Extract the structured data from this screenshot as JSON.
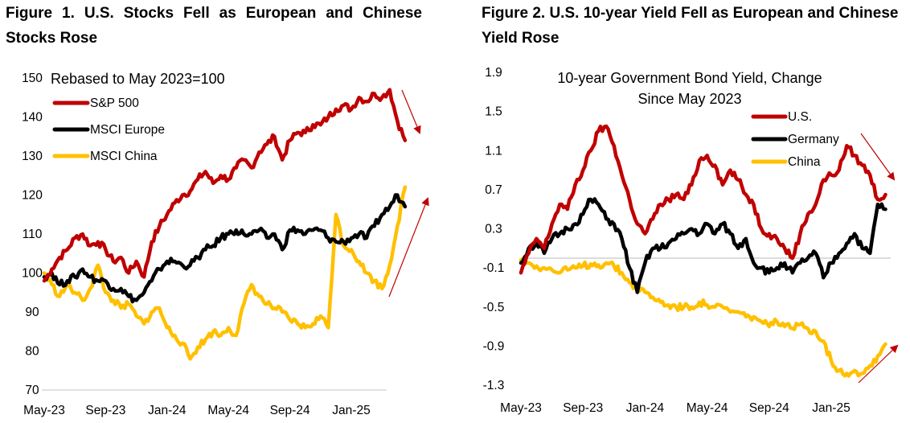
{
  "figures": [
    {
      "title": "Figure 1. U.S. Stocks Fell as European and Chinese Stocks Rose"
    },
    {
      "title": "Figure 2. U.S. 10-year Yield Fell as European and Chinese Yield Rose"
    }
  ],
  "colors": {
    "us": "#C00000",
    "europe": "#000000",
    "china": "#FFC000",
    "arrow": "#C00000",
    "zero_line": "#D0D0D0"
  },
  "chart_data": [
    {
      "type": "line",
      "title": "Figure 1. U.S. Stocks Fell as European and Chinese Stocks Rose",
      "subtitle": "Rebased to May 2023=100",
      "xlabel": "",
      "ylabel": "",
      "x_unit": "months since May-23",
      "xlim": [
        0,
        24
      ],
      "ylim": [
        70,
        150
      ],
      "yticks": [
        "150",
        "140",
        "130",
        "120",
        "110",
        "100",
        "90",
        "80",
        "70"
      ],
      "ytick_values": [
        150,
        140,
        130,
        120,
        110,
        100,
        90,
        80,
        70
      ],
      "xticks": [
        "May-23",
        "Sep-23",
        "Jan-24",
        "May-24",
        "Sep-24",
        "Jan-25"
      ],
      "xtick_values": [
        0,
        4,
        8,
        12,
        16,
        20
      ],
      "legend_position": "top-left",
      "x": [
        0,
        0.5,
        1,
        1.5,
        2,
        2.5,
        3,
        3.5,
        4,
        4.5,
        5,
        5.5,
        6,
        6.5,
        7,
        7.5,
        8,
        8.5,
        9,
        9.5,
        10,
        10.5,
        11,
        11.5,
        12,
        12.5,
        13,
        13.5,
        14,
        14.5,
        15,
        15.5,
        16,
        16.5,
        17,
        17.5,
        18,
        18.5,
        19,
        19.5,
        20,
        20.5,
        21,
        21.5,
        22,
        22.5,
        23,
        23.5
      ],
      "series": [
        {
          "name": "S&P 500",
          "key": "us",
          "values": [
            98,
            101,
            104,
            106,
            109,
            110,
            107,
            108,
            106,
            103,
            104,
            100,
            103,
            99,
            108,
            112,
            115,
            118,
            120,
            121,
            124,
            126,
            123,
            125,
            124,
            127,
            129,
            127,
            131,
            133,
            135,
            129,
            134,
            136,
            136,
            138,
            138,
            140,
            142,
            143,
            142,
            145,
            144,
            146,
            145,
            147,
            139,
            134
          ]
        },
        {
          "name": "MSCI Europe",
          "key": "europe",
          "values": [
            99,
            100,
            97,
            98,
            99,
            101,
            99,
            98,
            98,
            96,
            96,
            94,
            93,
            95,
            98,
            101,
            103,
            103,
            102,
            102,
            104,
            106,
            107,
            109,
            110,
            111,
            110,
            110,
            111,
            109,
            110,
            106,
            111,
            111,
            110,
            111,
            111,
            109,
            108,
            108,
            109,
            110,
            109,
            112,
            115,
            117,
            120,
            117
          ]
        },
        {
          "name": "MSCI China",
          "key": "china",
          "values": [
            100,
            97,
            94,
            97,
            95,
            93,
            96,
            102,
            95,
            93,
            91,
            92,
            89,
            87,
            90,
            91,
            86,
            84,
            82,
            78,
            81,
            83,
            85,
            84,
            86,
            84,
            92,
            97,
            94,
            92,
            91,
            90,
            88,
            87,
            86,
            87,
            89,
            86,
            115,
            107,
            106,
            103,
            100,
            98,
            96,
            102,
            112,
            122
          ]
        }
      ],
      "annotations": [
        "arrow-down-on-S&P-500",
        "arrow-up-on-Europe-and-China"
      ]
    },
    {
      "type": "line",
      "title": "Figure 2. U.S. 10-year Yield Fell as European and Chinese Yield Rose",
      "subtitle_lines": [
        "10-year Government Bond Yield, Change",
        "Since May 2023"
      ],
      "xlabel": "",
      "ylabel": "",
      "x_unit": "months since May-23",
      "xlim": [
        0,
        24
      ],
      "ylim": [
        -1.3,
        1.9
      ],
      "yticks": [
        "1.9",
        "1.5",
        "1.1",
        "0.7",
        "0.3",
        "-0.1",
        "-0.5",
        "-0.9",
        "-1.3"
      ],
      "ytick_values": [
        1.9,
        1.5,
        1.1,
        0.7,
        0.3,
        -0.1,
        -0.5,
        -0.9,
        -1.3
      ],
      "xticks": [
        "May-23",
        "Sep-23",
        "Jan-24",
        "May-24",
        "Sep-24",
        "Jan-25"
      ],
      "xtick_values": [
        0,
        4,
        8,
        12,
        16,
        20
      ],
      "legend_position": "top-right",
      "x": [
        0,
        0.5,
        1,
        1.5,
        2,
        2.5,
        3,
        3.5,
        4,
        4.5,
        5,
        5.5,
        6,
        6.5,
        7,
        7.5,
        8,
        8.5,
        9,
        9.5,
        10,
        10.5,
        11,
        11.5,
        12,
        12.5,
        13,
        13.5,
        14,
        14.5,
        15,
        15.5,
        16,
        16.5,
        17,
        17.5,
        18,
        18.5,
        19,
        19.5,
        20,
        20.5,
        21,
        21.5,
        22,
        22.5,
        23,
        23.5
      ],
      "series": [
        {
          "name": "U.S.",
          "key": "us",
          "values": [
            -0.15,
            0.05,
            0.2,
            0.1,
            0.35,
            0.55,
            0.5,
            0.75,
            0.9,
            1.1,
            1.3,
            1.35,
            1.15,
            0.85,
            0.6,
            0.35,
            0.25,
            0.4,
            0.55,
            0.6,
            0.65,
            0.6,
            0.75,
            1.0,
            1.05,
            0.95,
            0.75,
            0.9,
            0.8,
            0.65,
            0.55,
            0.3,
            0.25,
            0.2,
            0.1,
            0.0,
            0.25,
            0.45,
            0.55,
            0.8,
            0.85,
            0.9,
            1.15,
            1.05,
            0.95,
            0.85,
            0.6,
            0.65
          ]
        },
        {
          "name": "Germany",
          "key": "europe",
          "values": [
            -0.05,
            0.1,
            0.15,
            0.05,
            0.2,
            0.25,
            0.3,
            0.35,
            0.45,
            0.6,
            0.55,
            0.4,
            0.35,
            0.2,
            -0.1,
            -0.35,
            -0.05,
            0.1,
            0.1,
            0.15,
            0.2,
            0.25,
            0.3,
            0.25,
            0.35,
            0.25,
            0.35,
            0.25,
            0.1,
            0.2,
            -0.05,
            -0.1,
            -0.15,
            -0.1,
            -0.05,
            -0.15,
            -0.05,
            0.0,
            0.05,
            -0.2,
            -0.05,
            0.05,
            0.15,
            0.25,
            0.1,
            0.05,
            0.55,
            0.5
          ]
        },
        {
          "name": "China",
          "key": "china",
          "values": [
            -0.02,
            -0.05,
            -0.08,
            -0.1,
            -0.12,
            -0.15,
            -0.12,
            -0.1,
            -0.08,
            -0.06,
            -0.07,
            -0.05,
            -0.08,
            -0.15,
            -0.25,
            -0.3,
            -0.35,
            -0.4,
            -0.45,
            -0.48,
            -0.5,
            -0.5,
            -0.5,
            -0.45,
            -0.48,
            -0.5,
            -0.5,
            -0.55,
            -0.55,
            -0.6,
            -0.6,
            -0.65,
            -0.7,
            -0.65,
            -0.7,
            -0.72,
            -0.68,
            -0.72,
            -0.75,
            -0.85,
            -1.05,
            -1.15,
            -1.18,
            -1.15,
            -1.18,
            -1.1,
            -1.0,
            -0.88
          ]
        }
      ],
      "annotations": [
        "arrow-down-on-U.S.",
        "arrow-up-on-China"
      ]
    }
  ]
}
